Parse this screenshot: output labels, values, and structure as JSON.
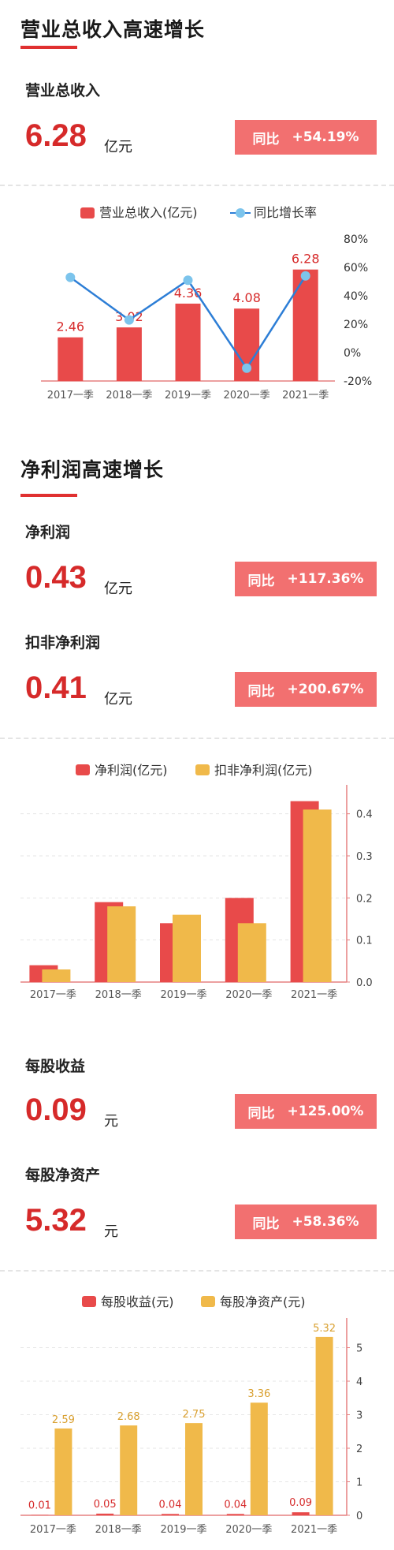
{
  "section1": {
    "title": "营业总收入高速增长",
    "metric": {
      "label": "营业总收入",
      "value": "6.28",
      "unit": "亿元",
      "yoy_label": "同比",
      "yoy_value": "+54.19%"
    }
  },
  "section2": {
    "title": "净利润高速增长",
    "metric1": {
      "label": "净利润",
      "value": "0.43",
      "unit": "亿元",
      "yoy_label": "同比",
      "yoy_value": "+117.36%"
    },
    "metric2": {
      "label": "扣非净利润",
      "value": "0.41",
      "unit": "亿元",
      "yoy_label": "同比",
      "yoy_value": "+200.67%"
    }
  },
  "section3": {
    "metric1": {
      "label": "每股收益",
      "value": "0.09",
      "unit": "元",
      "yoy_label": "同比",
      "yoy_value": "+125.00%"
    },
    "metric2": {
      "label": "每股净资产",
      "value": "5.32",
      "unit": "元",
      "yoy_label": "同比",
      "yoy_value": "+58.36%"
    }
  },
  "colors": {
    "red": "#e84a4a",
    "gold": "#f0b94a",
    "blue_line": "#2d7ed6",
    "blue_marker": "#7cc4ec",
    "badge": "#f27070",
    "value_red": "#d62a2a"
  },
  "chart_data": [
    {
      "type": "bar",
      "categories": [
        "2017一季",
        "2018一季",
        "2019一季",
        "2020一季",
        "2021一季"
      ],
      "series": [
        {
          "name": "营业总收入(亿元)",
          "type": "bar",
          "values": [
            2.46,
            3.02,
            4.36,
            4.08,
            6.28
          ],
          "labels": [
            "2.46",
            "3.02",
            "4.36",
            "4.08",
            "6.28"
          ]
        },
        {
          "name": "同比增长率",
          "type": "line",
          "axis": "right",
          "values": [
            53,
            23,
            51,
            -11,
            54
          ]
        }
      ],
      "ylim_left": [
        0,
        8
      ],
      "ylim_right": [
        -20,
        80
      ],
      "right_ticks": [
        "80%",
        "60%",
        "40%",
        "20%",
        "0%",
        "-20%"
      ],
      "legend": "top"
    },
    {
      "type": "bar",
      "categories": [
        "2017一季",
        "2018一季",
        "2019一季",
        "2020一季",
        "2021一季"
      ],
      "series": [
        {
          "name": "净利润(亿元)",
          "values": [
            0.04,
            0.19,
            0.14,
            0.2,
            0.43
          ]
        },
        {
          "name": "扣非净利润(亿元)",
          "values": [
            0.03,
            0.18,
            0.16,
            0.14,
            0.41
          ]
        }
      ],
      "ylim": [
        0,
        0.45
      ],
      "right_ticks": [
        "0.4",
        "0.3",
        "0.2",
        "0.1",
        "0.0"
      ],
      "legend": "top"
    },
    {
      "type": "bar",
      "categories": [
        "2017一季",
        "2018一季",
        "2019一季",
        "2020一季",
        "2021一季"
      ],
      "series": [
        {
          "name": "每股收益(元)",
          "values": [
            0.01,
            0.05,
            0.04,
            0.04,
            0.09
          ],
          "labels": [
            "0.01",
            "0.05",
            "0.04",
            "0.04",
            "0.09"
          ]
        },
        {
          "name": "每股净资产(元)",
          "values": [
            2.59,
            2.68,
            2.75,
            3.36,
            5.32
          ],
          "labels": [
            "2.59",
            "2.68",
            "2.75",
            "3.36",
            "5.32"
          ]
        }
      ],
      "ylim": [
        0,
        5.6
      ],
      "right_ticks": [
        "5",
        "4",
        "3",
        "2",
        "1",
        "0"
      ],
      "legend": "top"
    }
  ]
}
